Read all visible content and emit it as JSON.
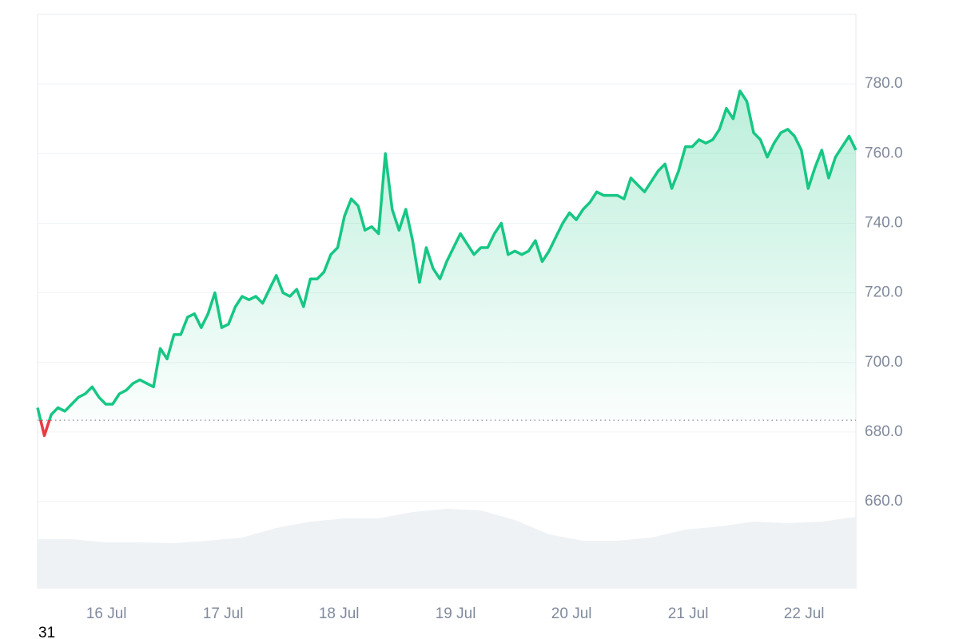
{
  "chart_data": {
    "type": "line",
    "x": [
      0,
      1,
      2,
      3,
      4,
      5,
      6,
      7,
      8,
      9,
      10,
      11,
      12,
      13,
      14,
      15,
      16,
      17,
      18,
      19,
      20,
      21,
      22,
      23,
      24,
      25,
      26,
      27,
      28,
      29,
      30,
      31,
      32,
      33,
      34,
      35,
      36,
      37,
      38,
      39,
      40,
      41,
      42,
      43,
      44,
      45,
      46,
      47,
      48,
      49,
      50,
      51,
      52,
      53,
      54,
      55,
      56,
      57,
      58,
      59,
      60,
      61,
      62,
      63,
      64,
      65,
      66,
      67,
      68,
      69,
      70,
      71,
      72,
      73,
      74,
      75,
      76,
      77,
      78,
      79,
      80,
      81,
      82,
      83,
      84,
      85,
      86,
      87,
      88,
      89,
      90,
      91,
      92,
      93,
      94,
      95,
      96,
      97,
      98,
      99,
      100,
      101,
      102,
      103,
      104,
      105,
      106,
      107,
      108,
      109,
      110,
      111,
      112,
      113,
      114,
      115,
      116,
      117,
      118,
      119,
      120
    ],
    "series": [
      {
        "color": "#16c784",
        "below_color": "#ea3943",
        "values": [
          687,
          679,
          685,
          687,
          686,
          688,
          690,
          691,
          693,
          690,
          688,
          688,
          691,
          692,
          694,
          695,
          694,
          693,
          704,
          701,
          708,
          708,
          713,
          714,
          710,
          714,
          720,
          710,
          711,
          716,
          719,
          718,
          719,
          717,
          721,
          725,
          720,
          719,
          721,
          716,
          724,
          724,
          726,
          731,
          733,
          742,
          747,
          745,
          738,
          739,
          737,
          760,
          744,
          738,
          744,
          735,
          723,
          733,
          727,
          724,
          729,
          733,
          737,
          734,
          731,
          733,
          733,
          737,
          740,
          731,
          732,
          731,
          732,
          735,
          729,
          732,
          736,
          740,
          743,
          741,
          744,
          746,
          749,
          748,
          748,
          748,
          747,
          753,
          751,
          749,
          752,
          755,
          757,
          750,
          755,
          762,
          762,
          764,
          763,
          764,
          767,
          773,
          770,
          778,
          775,
          766,
          764,
          759,
          763,
          766,
          767,
          765,
          761,
          750,
          756,
          761,
          753,
          759,
          762,
          765,
          761
        ]
      }
    ],
    "reference": 683.4,
    "volume": {
      "color": "#eff2f5",
      "values": [
        62,
        62,
        58,
        58,
        57,
        60,
        64,
        76,
        84,
        88,
        88,
        96,
        100,
        98,
        86,
        68,
        60,
        60,
        64,
        74,
        78,
        84,
        82,
        84,
        90
      ],
      "vlim": [
        0,
        100
      ]
    },
    "xlim": [
      0,
      120
    ],
    "xticks": [
      {
        "value": 10.1,
        "label": "16 Jul"
      },
      {
        "value": 27.2,
        "label": "17 Jul"
      },
      {
        "value": 44.2,
        "label": "18 Jul"
      },
      {
        "value": 61.3,
        "label": "19 Jul"
      },
      {
        "value": 78.3,
        "label": "20 Jul"
      },
      {
        "value": 95.4,
        "label": "21 Jul"
      },
      {
        "value": 112.4,
        "label": "22 Jul"
      }
    ],
    "ylim": [
      635,
      800
    ],
    "yticks": [
      {
        "value": 660,
        "label": "660.0"
      },
      {
        "value": 680,
        "label": "680.0"
      },
      {
        "value": 700,
        "label": "700.0"
      },
      {
        "value": 720,
        "label": "720.0"
      },
      {
        "value": 740,
        "label": "740.0"
      },
      {
        "value": 760,
        "label": "760.0"
      },
      {
        "value": 780,
        "label": "780.0"
      }
    ],
    "grid": true,
    "footer_text": "31"
  }
}
